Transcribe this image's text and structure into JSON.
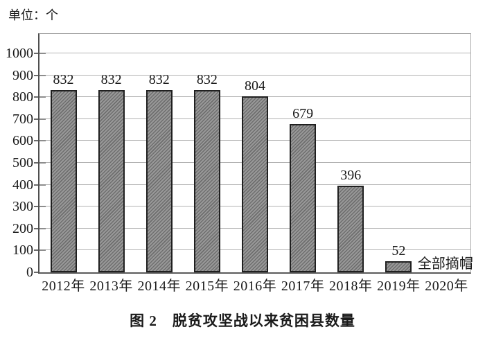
{
  "unit_label": "单位：个",
  "caption": "图 2　脱贫攻坚战以来贫困县数量",
  "chart_data": {
    "type": "bar",
    "title": "图 2　脱贫攻坚战以来贫困县数量",
    "unit": "单位：个",
    "categories": [
      "2012年",
      "2013年",
      "2014年",
      "2015年",
      "2016年",
      "2017年",
      "2018年",
      "2019年",
      "2020年"
    ],
    "values": [
      832,
      832,
      832,
      832,
      804,
      679,
      396,
      52,
      null
    ],
    "xlabel": "",
    "ylabel": "单位：个",
    "ylim": [
      0,
      1089
    ],
    "yticks": [
      0,
      100,
      200,
      300,
      400,
      500,
      600,
      700,
      800,
      900,
      1000
    ],
    "grid": true,
    "legend": "none",
    "bar_fill_base_color": "#989898",
    "bar_hatch_color": "#6e6e6e",
    "bar_border_color": "#202020",
    "annotations": [
      {
        "text": "全部摘帽",
        "category": "2020年",
        "at_value": 52
      }
    ]
  }
}
